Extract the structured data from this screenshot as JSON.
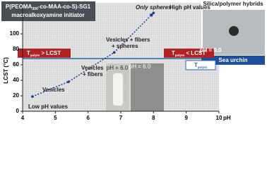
{
  "chart_data": {
    "type": "line",
    "xlabel": "pH",
    "ylabel": "LCST (°C)",
    "x": [
      4.3,
      5.4,
      6.8,
      8.0
    ],
    "values": [
      19,
      38,
      76,
      127
    ],
    "color": "#1f3a8a",
    "xlim": [
      4,
      10
    ],
    "xticks": [
      4,
      5,
      6,
      7,
      8,
      9,
      10
    ],
    "ylim": [
      0,
      140
    ],
    "yticks": [
      0,
      20,
      40,
      60,
      80,
      100
    ],
    "threshold": {
      "value": 68,
      "color": "#2a6fb0"
    },
    "annotations": [
      {
        "parts": [
          "P(PEOMA",
          "300",
          "-co-MAA-co-S)-SG1"
        ]
      },
      {
        "text": "macroalkoxyamine initiator"
      },
      {
        "text": "Only spheres"
      },
      {
        "text": "High pH values"
      },
      {
        "text": "Vesicles + fibers"
      },
      {
        "text": "+ spheres"
      },
      {
        "text": "Vesicles"
      },
      {
        "text": "+ fibers"
      },
      {
        "text": "Vesicles"
      },
      {
        "text": "Low pH values"
      },
      {
        "parts": [
          "T",
          "polym",
          " > LCST"
        ]
      },
      {
        "parts": [
          "T",
          "polym",
          " < LCST"
        ]
      },
      {
        "parts": [
          "T",
          "polym",
          ""
        ]
      },
      {
        "text": "pH = 6.0"
      },
      {
        "text": "pH = 6.0"
      },
      {
        "text": "Silica/polymer hybrids"
      },
      {
        "text": "pH = 9.0"
      },
      {
        "text": "Sea urchin"
      }
    ]
  }
}
